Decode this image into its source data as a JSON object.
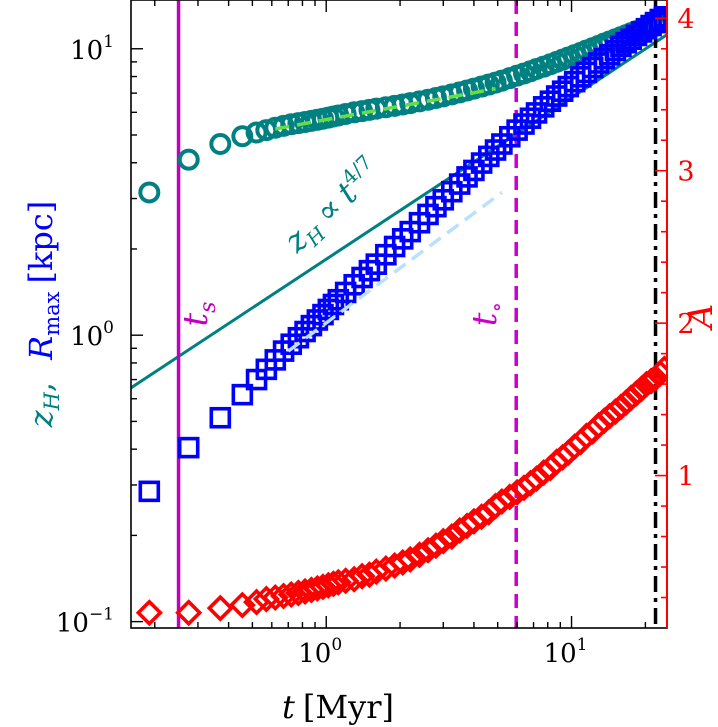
{
  "chart_data": {
    "type": "scatter",
    "title": "",
    "xscale": "log",
    "yscale": "log",
    "xlim": [
      0.16,
      24.5
    ],
    "ylim": [
      0.095,
      14.8
    ],
    "y2lim": [
      0.0,
      4.12
    ],
    "x_ticks": [
      {
        "value": 1,
        "base": "10",
        "exp": "0"
      },
      {
        "value": 10,
        "base": "10",
        "exp": "1"
      }
    ],
    "y_ticks": [
      {
        "value": 0.1,
        "base": "10",
        "exp": "−1"
      },
      {
        "value": 1,
        "base": "10",
        "exp": "0"
      },
      {
        "value": 10,
        "base": "10",
        "exp": "1"
      }
    ],
    "y2_ticks": [
      "1",
      "2",
      "3",
      "4"
    ],
    "xlabel": {
      "var": "t",
      "unit": "[Myr]"
    },
    "ylabel": {
      "var1": "z",
      "sub1": "H",
      "sep": ",",
      "var2": "R",
      "sub2": "max",
      "unit": "[kpc]"
    },
    "y2label": "A",
    "colors": {
      "zH": "#008080",
      "Rmax": "#0000ff",
      "A": "#ff0000",
      "ts_line": "#bf00bf",
      "to_line": "#cc00cc",
      "dashdot": "#000000",
      "fit_zH": "#66dd44",
      "fit_R": "#bbe0ff"
    },
    "series": [
      {
        "name": "z_H",
        "marker": "circle",
        "axis": "left",
        "x": [
          0.19,
          0.275,
          0.37,
          0.455,
          0.52,
          0.57,
          0.62,
          0.67,
          0.72,
          0.77,
          0.82,
          0.87,
          0.92,
          0.97,
          1.02,
          1.07,
          1.12,
          1.2,
          1.3,
          1.4,
          1.5,
          1.6,
          1.75,
          1.9,
          2.05,
          2.2,
          2.4,
          2.6,
          2.8,
          3.0,
          3.25,
          3.5,
          3.75,
          4.0,
          4.3,
          4.6,
          4.9,
          5.2,
          5.6,
          6.0,
          6.4,
          6.8,
          7.2,
          7.7,
          8.2,
          8.7,
          9.2,
          9.7,
          10.3,
          10.9,
          11.5,
          12.2,
          12.9,
          13.6,
          14.3,
          15.1,
          15.9,
          16.7,
          17.5,
          18.4,
          19.3,
          20.2,
          21.1,
          22.0,
          23.0,
          23.9
        ],
        "y": [
          3.15,
          4.1,
          4.65,
          4.95,
          5.1,
          5.2,
          5.3,
          5.38,
          5.45,
          5.5,
          5.55,
          5.6,
          5.65,
          5.7,
          5.75,
          5.8,
          5.85,
          5.92,
          6.0,
          6.06,
          6.12,
          6.18,
          6.25,
          6.32,
          6.39,
          6.46,
          6.55,
          6.64,
          6.73,
          6.82,
          6.93,
          7.04,
          7.15,
          7.26,
          7.38,
          7.5,
          7.62,
          7.74,
          7.9,
          8.06,
          8.2,
          8.35,
          8.5,
          8.66,
          8.83,
          9.0,
          9.16,
          9.32,
          9.5,
          9.68,
          9.86,
          10.05,
          10.24,
          10.43,
          10.6,
          10.8,
          10.98,
          11.16,
          11.34,
          11.52,
          11.7,
          11.88,
          12.05,
          12.2,
          12.38,
          12.55
        ]
      },
      {
        "name": "R_max",
        "marker": "square",
        "axis": "left",
        "x": [
          0.19,
          0.275,
          0.37,
          0.455,
          0.52,
          0.57,
          0.62,
          0.67,
          0.72,
          0.77,
          0.82,
          0.87,
          0.92,
          0.97,
          1.02,
          1.07,
          1.12,
          1.2,
          1.3,
          1.4,
          1.5,
          1.6,
          1.75,
          1.9,
          2.05,
          2.2,
          2.4,
          2.6,
          2.8,
          3.0,
          3.25,
          3.5,
          3.75,
          4.0,
          4.3,
          4.6,
          4.9,
          5.2,
          5.6,
          6.0,
          6.4,
          6.8,
          7.2,
          7.7,
          8.2,
          8.7,
          9.2,
          9.7,
          10.3,
          10.9,
          11.5,
          12.2,
          12.9,
          13.6,
          14.3,
          15.1,
          15.9,
          16.7,
          17.5,
          18.4,
          19.3,
          20.2,
          21.1,
          22.0,
          23.0,
          23.9
        ],
        "y": [
          0.285,
          0.405,
          0.515,
          0.62,
          0.7,
          0.76,
          0.82,
          0.88,
          0.93,
          0.98,
          1.03,
          1.08,
          1.13,
          1.18,
          1.23,
          1.28,
          1.33,
          1.41,
          1.5,
          1.59,
          1.68,
          1.77,
          1.91,
          2.04,
          2.17,
          2.3,
          2.47,
          2.64,
          2.81,
          2.97,
          3.17,
          3.37,
          3.57,
          3.76,
          3.99,
          4.21,
          4.43,
          4.65,
          4.93,
          5.2,
          5.46,
          5.72,
          5.97,
          6.27,
          6.56,
          6.84,
          7.11,
          7.38,
          7.68,
          7.98,
          8.27,
          8.6,
          8.92,
          9.23,
          9.53,
          9.86,
          10.19,
          10.5,
          10.8,
          11.13,
          11.45,
          11.75,
          12.05,
          12.34,
          12.65,
          12.93
        ]
      },
      {
        "name": "A",
        "marker": "diamond",
        "axis": "right",
        "x": [
          0.19,
          0.275,
          0.37,
          0.455,
          0.52,
          0.57,
          0.62,
          0.67,
          0.72,
          0.77,
          0.82,
          0.87,
          0.92,
          0.97,
          1.02,
          1.07,
          1.12,
          1.2,
          1.3,
          1.4,
          1.5,
          1.6,
          1.75,
          1.9,
          2.05,
          2.2,
          2.4,
          2.6,
          2.8,
          3.0,
          3.25,
          3.5,
          3.75,
          4.0,
          4.3,
          4.6,
          4.9,
          5.2,
          5.6,
          6.0,
          6.4,
          6.8,
          7.2,
          7.7,
          8.2,
          8.7,
          9.2,
          9.7,
          10.3,
          10.9,
          11.5,
          12.2,
          12.9,
          13.6,
          14.3,
          15.1,
          15.9,
          16.7,
          17.5,
          18.4,
          19.3,
          20.2,
          21.1,
          22.0,
          23.0,
          23.9
        ],
        "y": [
          0.1,
          0.1,
          0.13,
          0.15,
          0.17,
          0.19,
          0.2,
          0.21,
          0.22,
          0.23,
          0.24,
          0.25,
          0.26,
          0.27,
          0.28,
          0.29,
          0.3,
          0.31,
          0.32,
          0.34,
          0.35,
          0.37,
          0.39,
          0.41,
          0.43,
          0.45,
          0.48,
          0.51,
          0.54,
          0.57,
          0.6,
          0.64,
          0.67,
          0.7,
          0.73,
          0.76,
          0.8,
          0.83,
          0.86,
          0.89,
          0.92,
          0.95,
          0.98,
          1.02,
          1.05,
          1.09,
          1.12,
          1.15,
          1.19,
          1.22,
          1.26,
          1.29,
          1.33,
          1.36,
          1.39,
          1.42,
          1.45,
          1.48,
          1.51,
          1.54,
          1.57,
          1.6,
          1.62,
          1.64,
          1.67,
          1.7
        ]
      }
    ],
    "lines": [
      {
        "name": "z_H power-law t^{4/7}",
        "style": "solid",
        "color_key": "zH",
        "x": [
          0.16,
          24.5
        ],
        "y": [
          0.655,
          11.2
        ]
      },
      {
        "name": "z_H fit",
        "style": "dashed",
        "color_key": "fit_zH",
        "x": [
          0.62,
          4.9
        ],
        "y": [
          5.25,
          7.25
        ]
      },
      {
        "name": "R_max fit",
        "style": "dashed",
        "color_key": "fit_R",
        "x": [
          0.7,
          5.2
        ],
        "y": [
          0.88,
          3.15
        ]
      }
    ],
    "vlines": [
      {
        "name": "t_s",
        "x": 0.25,
        "style": "solid",
        "color_key": "ts_line"
      },
      {
        "name": "t_o",
        "x": 5.95,
        "style": "dashed",
        "color_key": "to_line"
      },
      {
        "name": "end",
        "x": 22.0,
        "style": "dashdot",
        "color_key": "dashdot"
      }
    ],
    "annotations": {
      "ts": {
        "var": "t",
        "sub": "s"
      },
      "to": {
        "var": "t",
        "sub": "∘"
      },
      "powerlaw": {
        "var": "z",
        "sub": "H",
        "rel": "∝",
        "tvar": "t",
        "exp": "4/7"
      }
    }
  }
}
